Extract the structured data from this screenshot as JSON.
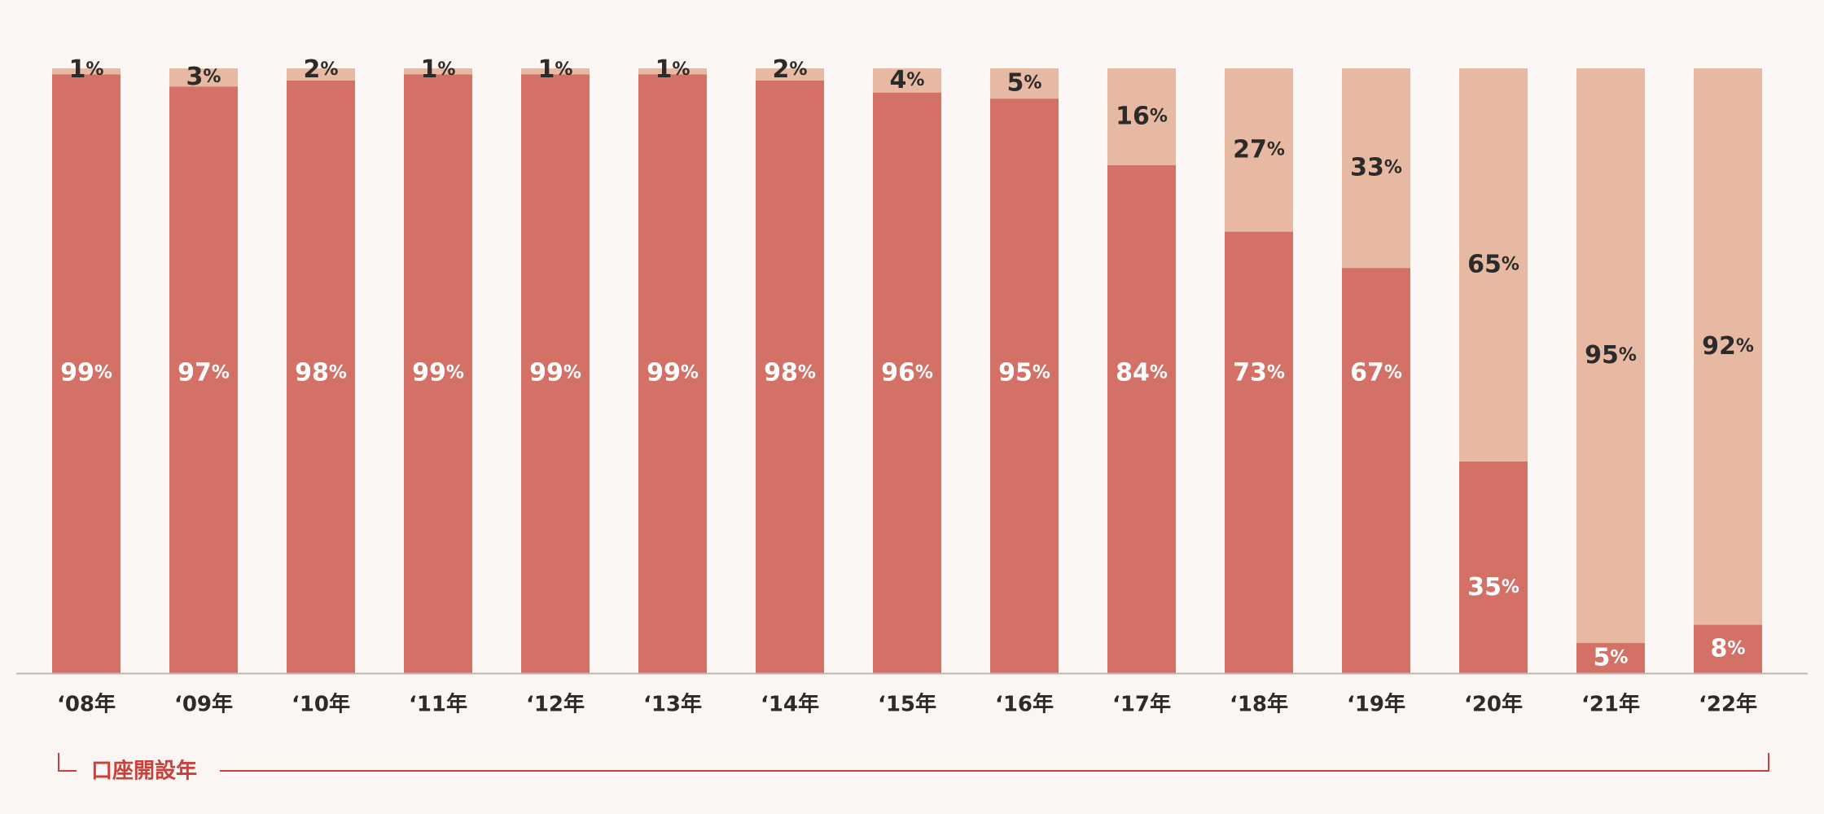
{
  "chart_data": {
    "type": "bar",
    "stacked": true,
    "categories": [
      "‘08年",
      "‘09年",
      "‘10年",
      "‘11年",
      "‘12年",
      "‘13年",
      "‘14年",
      "‘15年",
      "‘16年",
      "‘17年",
      "‘18年",
      "‘19年",
      "‘20年",
      "‘21年",
      "‘22年"
    ],
    "series": [
      {
        "values": [
          99,
          97,
          98,
          99,
          99,
          99,
          98,
          96,
          95,
          84,
          73,
          67,
          35,
          5,
          8
        ]
      },
      {
        "values": [
          1,
          3,
          2,
          1,
          1,
          1,
          2,
          4,
          5,
          16,
          27,
          33,
          65,
          95,
          92
        ]
      }
    ],
    "unit": "%",
    "ylim": [
      0,
      100
    ],
    "grid": false,
    "legend": "none",
    "xlabel": "口座開設年",
    "colors": {
      "series_bottom": "#d37166",
      "series_top": "#e8b9a2",
      "label_on_bottom": "#ffffff",
      "label_on_top": "#2b2b2b",
      "baseline": "#bdb8b5",
      "bracket": "#c9413a",
      "background": "#fbf6f3"
    }
  }
}
